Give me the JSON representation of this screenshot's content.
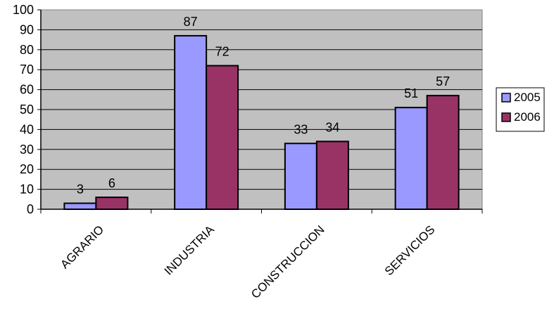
{
  "chart_data": {
    "type": "bar",
    "title": "",
    "xlabel": "",
    "ylabel": "",
    "categories": [
      "AGRARIO",
      "INDUSTRIA",
      "CONSTRUCCION",
      "SERVICIOS"
    ],
    "series": [
      {
        "name": "2005",
        "values": [
          3,
          87,
          33,
          51
        ],
        "color": "#9999ff"
      },
      {
        "name": "2006",
        "values": [
          6,
          72,
          34,
          57
        ],
        "color": "#993366"
      }
    ],
    "ylim": [
      0,
      100
    ],
    "yticks": [
      "0",
      "10",
      "20",
      "30",
      "40",
      "50",
      "60",
      "70",
      "80",
      "90",
      "100"
    ],
    "grid": true,
    "plot_background": "#c0c0c0",
    "legend_position": "right",
    "data_labels": true
  }
}
